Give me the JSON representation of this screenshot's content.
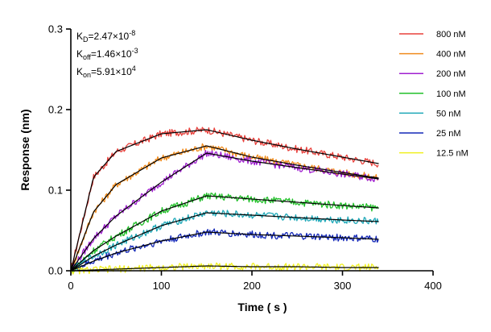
{
  "chart_data": {
    "type": "line",
    "title": "",
    "xlabel": "Time ( s )",
    "ylabel": "Response (nm)",
    "xlim": [
      0,
      400
    ],
    "ylim": [
      0,
      0.3
    ],
    "x_ticks": [
      {
        "value": 0,
        "label": "0"
      },
      {
        "value": 100,
        "label": "100"
      },
      {
        "value": 200,
        "label": "200"
      },
      {
        "value": 300,
        "label": "300"
      },
      {
        "value": 400,
        "label": "400"
      }
    ],
    "y_ticks": [
      {
        "value": 0.0,
        "label": "0.0"
      },
      {
        "value": 0.1,
        "label": "0.1"
      },
      {
        "value": 0.2,
        "label": "0.2"
      },
      {
        "value": 0.3,
        "label": "0.3"
      }
    ],
    "grid": false,
    "legend_position": "right",
    "annotations": [
      {
        "main": "K",
        "sub": "D",
        "rest": "=2.47×10",
        "sup": "-8"
      },
      {
        "main": "K",
        "sub": "off",
        "rest": "=1.46×10",
        "sup": "-3"
      },
      {
        "main": "K",
        "sub": "on",
        "rest": "=5.91×10",
        "sup": "4"
      }
    ],
    "association_end_s": 150,
    "end_s": 340,
    "fit_color": "#000000",
    "series": [
      {
        "name": "800 nM",
        "color": "#e8413c",
        "x": [
          0,
          25,
          50,
          100,
          150,
          200,
          250,
          300,
          340
        ],
        "y": [
          0,
          0.116,
          0.148,
          0.17,
          0.175,
          0.162,
          0.151,
          0.141,
          0.133
        ]
      },
      {
        "name": "400 nM",
        "color": "#f08c1e",
        "x": [
          0,
          25,
          50,
          100,
          150,
          200,
          250,
          300,
          340
        ],
        "y": [
          0,
          0.073,
          0.107,
          0.14,
          0.155,
          0.141,
          0.131,
          0.122,
          0.115
        ]
      },
      {
        "name": "200 nM",
        "color": "#a020d0",
        "x": [
          0,
          25,
          50,
          100,
          150,
          200,
          250,
          300,
          340
        ],
        "y": [
          0,
          0.04,
          0.068,
          0.11,
          0.146,
          0.136,
          0.128,
          0.12,
          0.114
        ]
      },
      {
        "name": "100 nM",
        "color": "#22c02a",
        "x": [
          0,
          25,
          50,
          100,
          150,
          200,
          250,
          300,
          340
        ],
        "y": [
          0,
          0.025,
          0.043,
          0.074,
          0.093,
          0.089,
          0.085,
          0.081,
          0.078
        ]
      },
      {
        "name": "50 nM",
        "color": "#1ea8b8",
        "x": [
          0,
          25,
          50,
          100,
          150,
          200,
          250,
          300,
          340
        ],
        "y": [
          0,
          0.018,
          0.032,
          0.056,
          0.072,
          0.069,
          0.066,
          0.063,
          0.061
        ]
      },
      {
        "name": "25 nM",
        "color": "#1428b8",
        "x": [
          0,
          25,
          50,
          100,
          150,
          200,
          250,
          300,
          340
        ],
        "y": [
          0,
          0.012,
          0.022,
          0.037,
          0.048,
          0.045,
          0.043,
          0.041,
          0.039
        ]
      },
      {
        "name": "12.5 nM",
        "color": "#f0f020",
        "x": [
          0,
          25,
          50,
          100,
          150,
          200,
          250,
          300,
          340
        ],
        "y": [
          0,
          0.001,
          0.002,
          0.004,
          0.006,
          0.005,
          0.005,
          0.004,
          0.004
        ]
      }
    ]
  }
}
